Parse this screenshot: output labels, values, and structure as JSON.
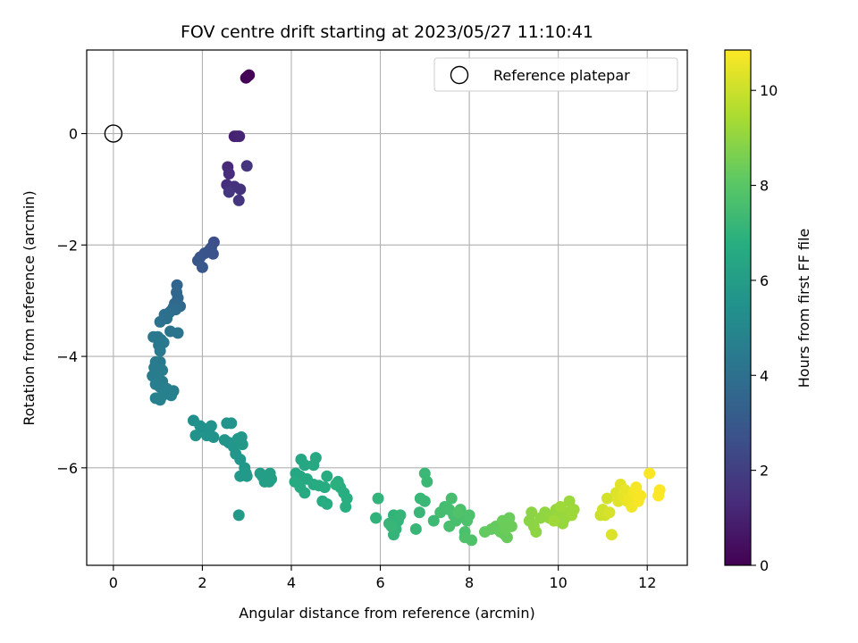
{
  "chart_data": {
    "type": "scatter",
    "title": "FOV centre drift starting at 2023/05/27 11:10:41",
    "xlabel": "Angular distance from reference (arcmin)",
    "ylabel": "Rotation from reference (arcmin)",
    "xlim": [
      -0.6,
      12.9
    ],
    "ylim": [
      -7.75,
      1.5
    ],
    "xticks": [
      0,
      2,
      4,
      6,
      8,
      10,
      12
    ],
    "yticks": [
      -6,
      -4,
      -2,
      0
    ],
    "grid": true,
    "legend": {
      "placement": "top-right",
      "label": "Reference platepar"
    },
    "reference_point": {
      "x": 0,
      "y": 0
    },
    "colorbar": {
      "label": "Hours from first FF file",
      "colormap": "viridis",
      "range": [
        0,
        10.85
      ],
      "ticks": [
        0,
        2,
        4,
        6,
        8,
        10
      ]
    },
    "series": [
      {
        "points": [
          [
            2.98,
            1.0,
            0.05
          ],
          [
            3.02,
            1.03,
            0.1
          ],
          [
            3.05,
            1.05,
            0.12
          ],
          [
            2.72,
            -0.05,
            1.0
          ],
          [
            2.78,
            -0.05,
            1.05
          ],
          [
            2.83,
            -0.05,
            1.1
          ],
          [
            2.57,
            -0.6,
            1.3
          ],
          [
            2.6,
            -0.72,
            1.35
          ],
          [
            2.55,
            -0.92,
            1.4
          ],
          [
            2.63,
            -0.98,
            1.45
          ],
          [
            2.72,
            -0.95,
            1.5
          ],
          [
            2.85,
            -1.0,
            1.55
          ],
          [
            3.0,
            -0.58,
            1.6
          ],
          [
            2.82,
            -1.2,
            1.65
          ],
          [
            2.6,
            -1.05,
            1.7
          ],
          [
            2.26,
            -1.95,
            2.6
          ],
          [
            2.2,
            -2.05,
            2.65
          ],
          [
            2.15,
            -2.1,
            2.7
          ],
          [
            2.24,
            -2.16,
            2.75
          ],
          [
            2.05,
            -2.15,
            2.8
          ],
          [
            1.95,
            -2.22,
            2.85
          ],
          [
            1.9,
            -2.28,
            2.9
          ],
          [
            2.0,
            -2.4,
            2.95
          ],
          [
            1.43,
            -2.72,
            3.5
          ],
          [
            1.42,
            -2.85,
            3.55
          ],
          [
            1.45,
            -2.95,
            3.6
          ],
          [
            1.38,
            -3.05,
            3.65
          ],
          [
            1.5,
            -3.1,
            3.7
          ],
          [
            1.35,
            -3.12,
            3.75
          ],
          [
            1.3,
            -3.18,
            3.8
          ],
          [
            1.4,
            -3.16,
            3.85
          ],
          [
            1.25,
            -3.22,
            3.9
          ],
          [
            1.15,
            -3.25,
            3.95
          ],
          [
            1.2,
            -3.32,
            4.0
          ],
          [
            1.05,
            -3.38,
            4.05
          ],
          [
            1.28,
            -3.55,
            4.1
          ],
          [
            1.45,
            -3.58,
            4.15
          ],
          [
            0.9,
            -3.65,
            4.3
          ],
          [
            1.0,
            -3.65,
            4.32
          ],
          [
            1.07,
            -3.7,
            4.34
          ],
          [
            1.13,
            -3.75,
            4.36
          ],
          [
            1.02,
            -3.8,
            4.38
          ],
          [
            1.05,
            -3.9,
            4.4
          ],
          [
            0.95,
            -4.1,
            4.42
          ],
          [
            1.05,
            -4.1,
            4.44
          ],
          [
            0.92,
            -4.2,
            4.46
          ],
          [
            1.02,
            -4.22,
            4.48
          ],
          [
            1.1,
            -4.25,
            4.5
          ],
          [
            0.88,
            -4.35,
            4.52
          ],
          [
            1.0,
            -4.35,
            4.54
          ],
          [
            1.1,
            -4.45,
            4.56
          ],
          [
            0.95,
            -4.5,
            4.58
          ],
          [
            1.05,
            -4.55,
            4.6
          ],
          [
            1.2,
            -4.58,
            4.62
          ],
          [
            1.35,
            -4.62,
            4.64
          ],
          [
            1.3,
            -4.7,
            4.66
          ],
          [
            1.15,
            -4.68,
            4.68
          ],
          [
            0.95,
            -4.75,
            4.7
          ],
          [
            1.05,
            -4.78,
            4.72
          ],
          [
            1.0,
            -4.75,
            4.74
          ],
          [
            1.8,
            -5.15,
            5.4
          ],
          [
            1.95,
            -5.25,
            5.42
          ],
          [
            2.05,
            -5.3,
            5.44
          ],
          [
            2.15,
            -5.35,
            5.46
          ],
          [
            2.2,
            -5.25,
            5.48
          ],
          [
            2.25,
            -5.45,
            5.5
          ],
          [
            2.1,
            -5.42,
            5.52
          ],
          [
            1.85,
            -5.42,
            5.54
          ],
          [
            2.55,
            -5.2,
            5.56
          ],
          [
            2.65,
            -5.2,
            5.58
          ],
          [
            2.5,
            -5.5,
            5.6
          ],
          [
            2.6,
            -5.55,
            5.62
          ],
          [
            2.7,
            -5.62,
            5.64
          ],
          [
            2.75,
            -5.75,
            5.66
          ],
          [
            2.85,
            -5.85,
            5.68
          ],
          [
            2.8,
            -5.48,
            5.7
          ],
          [
            2.88,
            -5.45,
            5.72
          ],
          [
            2.9,
            -5.58,
            5.74
          ],
          [
            2.95,
            -6.0,
            5.76
          ],
          [
            2.85,
            -6.15,
            5.78
          ],
          [
            3.0,
            -6.15,
            5.8
          ],
          [
            2.98,
            -6.1,
            5.82
          ],
          [
            2.82,
            -6.85,
            5.84
          ],
          [
            3.3,
            -6.1,
            6.0
          ],
          [
            3.35,
            -6.15,
            6.02
          ],
          [
            3.4,
            -6.25,
            6.04
          ],
          [
            3.5,
            -6.25,
            6.06
          ],
          [
            3.55,
            -6.2,
            6.08
          ],
          [
            3.52,
            -6.1,
            6.1
          ],
          [
            4.22,
            -5.85,
            6.4
          ],
          [
            4.3,
            -5.95,
            6.42
          ],
          [
            4.1,
            -6.1,
            6.44
          ],
          [
            4.2,
            -6.15,
            6.46
          ],
          [
            4.35,
            -6.2,
            6.48
          ],
          [
            4.5,
            -5.95,
            6.5
          ],
          [
            4.55,
            -5.82,
            6.52
          ],
          [
            4.08,
            -6.25,
            6.54
          ],
          [
            4.2,
            -6.35,
            6.56
          ],
          [
            4.3,
            -6.45,
            6.58
          ],
          [
            4.5,
            -6.3,
            6.6
          ],
          [
            4.62,
            -6.32,
            6.62
          ],
          [
            4.75,
            -6.35,
            6.64
          ],
          [
            4.8,
            -6.15,
            6.66
          ],
          [
            4.7,
            -6.6,
            6.68
          ],
          [
            4.8,
            -6.65,
            6.7
          ],
          [
            5.05,
            -6.25,
            6.72
          ],
          [
            5.1,
            -6.35,
            6.74
          ],
          [
            5.18,
            -6.45,
            6.76
          ],
          [
            5.25,
            -6.55,
            6.78
          ],
          [
            5.22,
            -6.7,
            6.8
          ],
          [
            5.0,
            -6.3,
            6.82
          ],
          [
            5.9,
            -6.9,
            7.0
          ],
          [
            5.95,
            -6.55,
            7.02
          ],
          [
            6.3,
            -6.85,
            7.04
          ],
          [
            6.4,
            -6.95,
            7.06
          ],
          [
            6.35,
            -7.1,
            7.08
          ],
          [
            6.3,
            -7.2,
            7.1
          ],
          [
            6.2,
            -7.0,
            7.12
          ],
          [
            6.45,
            -6.85,
            7.14
          ],
          [
            6.25,
            -7.05,
            7.16
          ],
          [
            6.8,
            -7.1,
            7.18
          ],
          [
            6.88,
            -6.8,
            7.2
          ],
          [
            6.9,
            -6.55,
            7.22
          ],
          [
            7.0,
            -6.6,
            7.24
          ],
          [
            7.0,
            -6.1,
            7.26
          ],
          [
            7.05,
            -6.25,
            7.28
          ],
          [
            7.2,
            -6.95,
            7.3
          ],
          [
            7.35,
            -6.8,
            7.5
          ],
          [
            7.45,
            -6.7,
            7.52
          ],
          [
            7.55,
            -6.75,
            7.54
          ],
          [
            7.6,
            -6.55,
            7.56
          ],
          [
            7.65,
            -6.85,
            7.58
          ],
          [
            7.7,
            -6.95,
            7.6
          ],
          [
            7.55,
            -7.05,
            7.62
          ],
          [
            7.8,
            -6.75,
            7.64
          ],
          [
            7.85,
            -6.85,
            7.66
          ],
          [
            7.9,
            -7.15,
            7.68
          ],
          [
            7.95,
            -6.95,
            7.7
          ],
          [
            8.0,
            -6.85,
            7.72
          ],
          [
            7.9,
            -7.25,
            7.74
          ],
          [
            8.05,
            -7.3,
            7.76
          ],
          [
            7.75,
            -6.8,
            7.78
          ],
          [
            8.35,
            -7.15,
            8.2
          ],
          [
            8.5,
            -7.1,
            8.22
          ],
          [
            8.6,
            -7.05,
            8.24
          ],
          [
            8.7,
            -7.15,
            8.26
          ],
          [
            8.8,
            -7.2,
            8.28
          ],
          [
            8.85,
            -7.25,
            8.3
          ],
          [
            8.75,
            -6.95,
            8.32
          ],
          [
            8.9,
            -6.9,
            8.34
          ],
          [
            8.95,
            -7.05,
            8.36
          ],
          [
            8.82,
            -7.1,
            8.38
          ],
          [
            9.35,
            -6.95,
            8.9
          ],
          [
            9.4,
            -6.8,
            8.92
          ],
          [
            9.45,
            -7.05,
            8.94
          ],
          [
            9.5,
            -7.15,
            8.96
          ],
          [
            9.6,
            -6.9,
            8.98
          ],
          [
            9.7,
            -6.8,
            9.0
          ],
          [
            9.8,
            -6.9,
            9.02
          ],
          [
            9.9,
            -6.85,
            9.04
          ],
          [
            9.95,
            -6.75,
            9.06
          ],
          [
            10.0,
            -6.95,
            9.08
          ],
          [
            10.05,
            -6.85,
            9.1
          ],
          [
            10.1,
            -7.0,
            9.12
          ],
          [
            10.15,
            -6.9,
            9.14
          ],
          [
            10.2,
            -6.8,
            9.16
          ],
          [
            10.25,
            -6.6,
            9.18
          ],
          [
            10.3,
            -6.85,
            9.2
          ],
          [
            10.35,
            -6.75,
            9.22
          ],
          [
            10.05,
            -6.7,
            9.24
          ],
          [
            9.9,
            -6.95,
            9.26
          ],
          [
            10.95,
            -6.85,
            10.0
          ],
          [
            11.0,
            -6.75,
            10.05
          ],
          [
            11.05,
            -6.85,
            10.1
          ],
          [
            11.1,
            -6.55,
            10.15
          ],
          [
            11.15,
            -6.8,
            10.2
          ],
          [
            11.2,
            -7.2,
            10.25
          ],
          [
            11.3,
            -6.45,
            10.3
          ],
          [
            11.35,
            -6.6,
            10.35
          ],
          [
            11.4,
            -6.3,
            10.4
          ],
          [
            11.45,
            -6.5,
            10.45
          ],
          [
            11.5,
            -6.4,
            10.5
          ],
          [
            11.55,
            -6.6,
            10.55
          ],
          [
            11.6,
            -6.55,
            10.6
          ],
          [
            11.65,
            -6.7,
            10.65
          ],
          [
            11.7,
            -6.45,
            10.7
          ],
          [
            11.75,
            -6.35,
            10.72
          ],
          [
            11.8,
            -6.6,
            10.74
          ],
          [
            11.85,
            -6.5,
            10.76
          ],
          [
            12.05,
            -6.1,
            10.78
          ],
          [
            12.25,
            -6.5,
            10.8
          ],
          [
            12.28,
            -6.4,
            10.82
          ]
        ]
      }
    ]
  }
}
